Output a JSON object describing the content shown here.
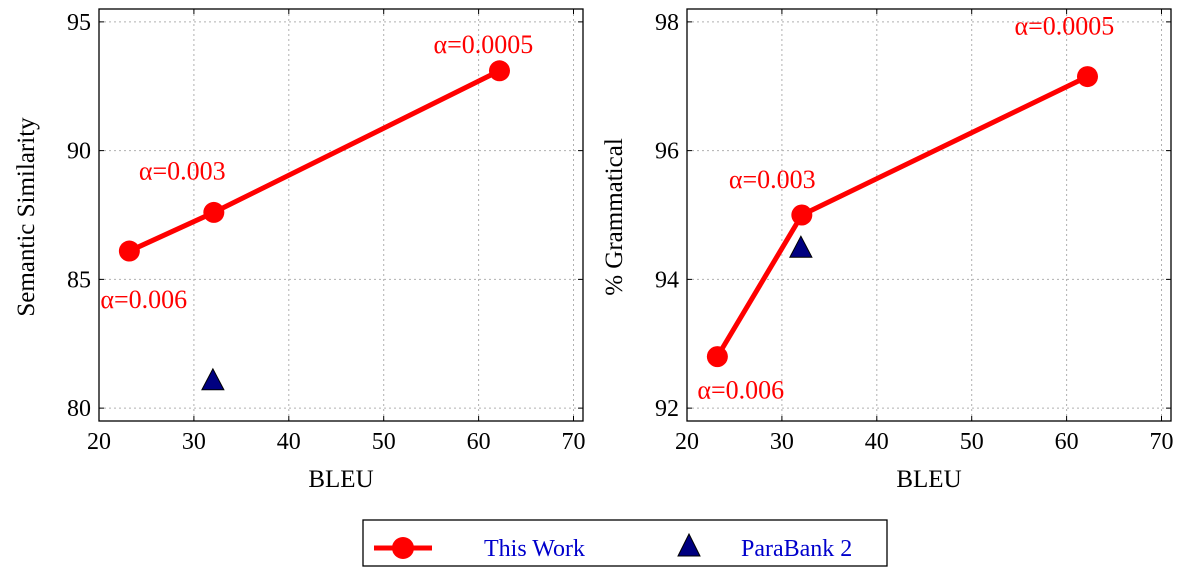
{
  "chart_data": [
    {
      "type": "line",
      "xlabel": "BLEU",
      "ylabel": "Semantic Similarity",
      "xlim": [
        20,
        71
      ],
      "ylim": [
        79.5,
        95.5
      ],
      "xticks": [
        "20",
        "30",
        "40",
        "50",
        "60",
        "70"
      ],
      "yticks": [
        "80",
        "85",
        "90",
        "95"
      ],
      "grid": true,
      "series": [
        {
          "name": "This Work",
          "marker": "circle",
          "color": "#ff0000",
          "x": [
            23.2,
            32.1,
            62.2
          ],
          "y": [
            86.1,
            87.6,
            93.1
          ]
        },
        {
          "name": "ParaBank 2",
          "marker": "triangle",
          "color": "#000080",
          "x": [
            32.0
          ],
          "y": [
            81.1
          ]
        }
      ],
      "annotations": [
        {
          "text": "α=0.006",
          "x": 23.2,
          "y": 86.1
        },
        {
          "text": "α=0.003",
          "x": 32.1,
          "y": 87.6
        },
        {
          "text": "α=0.0005",
          "x": 62.2,
          "y": 93.1
        }
      ]
    },
    {
      "type": "line",
      "xlabel": "BLEU",
      "ylabel": "% Grammatical",
      "xlim": [
        20,
        71
      ],
      "ylim": [
        91.8,
        98.2
      ],
      "xticks": [
        "20",
        "30",
        "40",
        "50",
        "60",
        "70"
      ],
      "yticks": [
        "92",
        "94",
        "96",
        "98"
      ],
      "grid": true,
      "series": [
        {
          "name": "This Work",
          "marker": "circle",
          "color": "#ff0000",
          "x": [
            23.2,
            32.1,
            62.2
          ],
          "y": [
            92.8,
            95.0,
            97.15
          ]
        },
        {
          "name": "ParaBank 2",
          "marker": "triangle",
          "color": "#000080",
          "x": [
            32.0
          ],
          "y": [
            94.5
          ]
        }
      ],
      "annotations": [
        {
          "text": "α=0.006",
          "x": 23.2,
          "y": 92.8
        },
        {
          "text": "α=0.003",
          "x": 32.1,
          "y": 95.0
        },
        {
          "text": "α=0.0005",
          "x": 62.2,
          "y": 97.15
        }
      ]
    }
  ],
  "legend": {
    "placement": "bottom-center",
    "items": [
      {
        "label": "This Work",
        "marker": "circle",
        "color": "#ff0000"
      },
      {
        "label": "ParaBank 2",
        "marker": "triangle",
        "color": "#000080"
      }
    ]
  }
}
